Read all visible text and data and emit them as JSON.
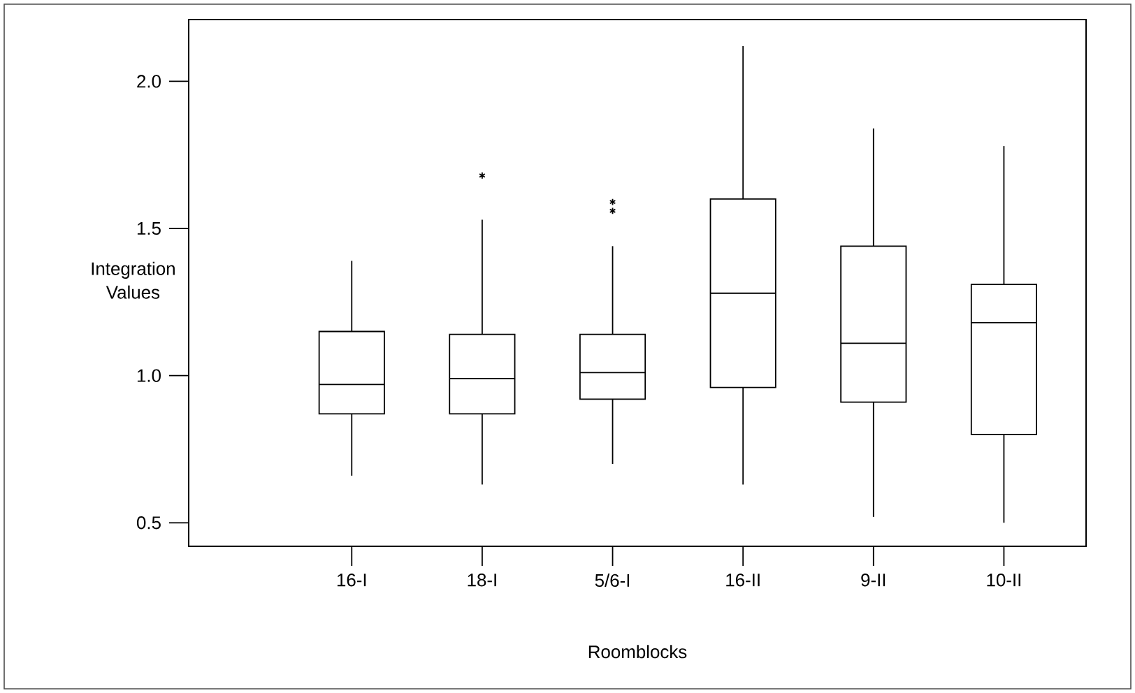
{
  "chart_data": {
    "type": "box",
    "xlabel": "Roomblocks",
    "ylabel": "Integration Values",
    "categories": [
      "16-I",
      "18-I",
      "5/6-I",
      "16-II",
      "9-II",
      "10-II"
    ],
    "boxes": [
      {
        "low": 0.66,
        "q1": 0.87,
        "median": 0.97,
        "q3": 1.15,
        "high": 1.39
      },
      {
        "low": 0.63,
        "q1": 0.87,
        "median": 0.99,
        "q3": 1.14,
        "high": 1.53,
        "outliers": [
          1.68
        ]
      },
      {
        "low": 0.7,
        "q1": 0.92,
        "median": 1.01,
        "q3": 1.14,
        "high": 1.44,
        "outliers": [
          1.59,
          1.56
        ]
      },
      {
        "low": 0.63,
        "q1": 0.96,
        "median": 1.28,
        "q3": 1.6,
        "high": 2.12
      },
      {
        "low": 0.52,
        "q1": 0.91,
        "median": 1.11,
        "q3": 1.44,
        "high": 1.84
      },
      {
        "low": 0.5,
        "q1": 0.8,
        "median": 1.18,
        "q3": 1.31,
        "high": 1.78
      }
    ],
    "color": "#000000",
    "marker": "star",
    "ylim": [
      0.42,
      2.21
    ],
    "yticks": [
      {
        "value": 0.5,
        "label": "0.5"
      },
      {
        "value": 1.0,
        "label": "1.0"
      },
      {
        "value": 1.5,
        "label": "1.5"
      },
      {
        "value": 2.0,
        "label": "2.0"
      }
    ],
    "grid": false
  }
}
